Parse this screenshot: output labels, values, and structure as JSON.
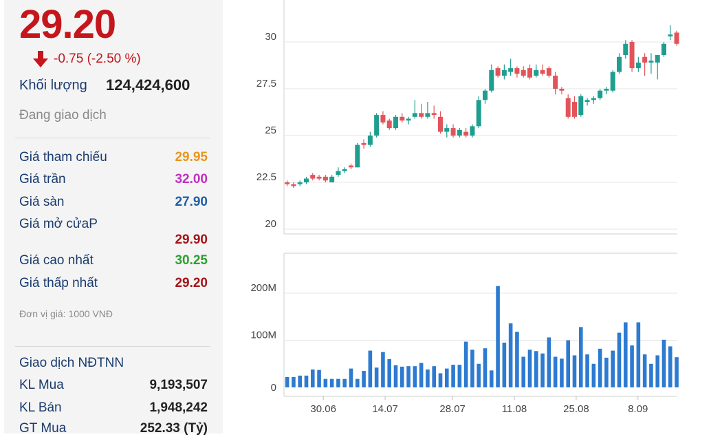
{
  "quote": {
    "price": "29.20",
    "change": "-0.75 (-2.50 %)",
    "volume_label": "Khối lượng",
    "volume_value": "124,424,600",
    "status": "Đang giao dịch"
  },
  "price_stats": [
    {
      "label": "Giá tham chiếu",
      "value": "29.95",
      "color": "#e8961b"
    },
    {
      "label": "Giá trần",
      "value": "32.00",
      "color": "#c12fc1"
    },
    {
      "label": "Giá sàn",
      "value": "27.90",
      "color": "#1f5fa5"
    },
    {
      "label": "Giá mở cửaP",
      "value": "29.90",
      "color": "#a31419"
    },
    {
      "label": "Giá cao nhất",
      "value": "30.25",
      "color": "#2e9e2e"
    },
    {
      "label": "Giá thấp nhất",
      "value": "29.20",
      "color": "#a31419"
    }
  ],
  "unit_note": "Đơn vị giá: 1000 VNĐ",
  "foreign": {
    "title": "Giao dịch NĐTNN",
    "rows": [
      {
        "label": "KL Mua",
        "value": "9,193,507"
      },
      {
        "label": "KL Bán",
        "value": "1,948,242"
      },
      {
        "label": "GT Mua",
        "value": "252.33 (Tỷ)"
      }
    ]
  },
  "colors": {
    "up": "#1f9e8f",
    "down": "#e2545a",
    "volume": "#2d7ad1",
    "price": "#c4161c"
  },
  "chart_data": [
    {
      "type": "candlestick",
      "y_ticks": [
        "30",
        "27.5",
        "25",
        "22.5",
        "20"
      ],
      "ylim": [
        20,
        31
      ],
      "x_ticks": [
        "30.06",
        "14.07",
        "28.07",
        "11.08",
        "25.08",
        "8.09"
      ],
      "candles": [
        {
          "o": 22.5,
          "h": 22.6,
          "l": 22.3,
          "c": 22.4
        },
        {
          "o": 22.4,
          "h": 22.5,
          "l": 22.2,
          "c": 22.3
        },
        {
          "o": 22.4,
          "h": 22.6,
          "l": 22.3,
          "c": 22.5
        },
        {
          "o": 22.5,
          "h": 22.8,
          "l": 22.4,
          "c": 22.7
        },
        {
          "o": 22.9,
          "h": 23.0,
          "l": 22.6,
          "c": 22.7
        },
        {
          "o": 22.8,
          "h": 22.9,
          "l": 22.6,
          "c": 22.7
        },
        {
          "o": 22.8,
          "h": 22.9,
          "l": 22.5,
          "c": 22.6
        },
        {
          "o": 22.5,
          "h": 22.9,
          "l": 22.5,
          "c": 22.8
        },
        {
          "o": 22.9,
          "h": 23.3,
          "l": 22.8,
          "c": 23.1
        },
        {
          "o": 23.1,
          "h": 23.3,
          "l": 23.0,
          "c": 23.2
        },
        {
          "o": 23.4,
          "h": 23.5,
          "l": 23.2,
          "c": 23.3
        },
        {
          "o": 23.3,
          "h": 24.6,
          "l": 23.3,
          "c": 24.5
        },
        {
          "o": 24.6,
          "h": 24.8,
          "l": 24.3,
          "c": 24.5
        },
        {
          "o": 24.5,
          "h": 25.2,
          "l": 24.4,
          "c": 25.0
        },
        {
          "o": 25.0,
          "h": 26.2,
          "l": 24.9,
          "c": 26.1
        },
        {
          "o": 26.1,
          "h": 26.3,
          "l": 25.6,
          "c": 25.7
        },
        {
          "o": 25.8,
          "h": 25.9,
          "l": 25.3,
          "c": 25.4
        },
        {
          "o": 25.4,
          "h": 26.1,
          "l": 25.3,
          "c": 26.0
        },
        {
          "o": 26.0,
          "h": 26.2,
          "l": 25.7,
          "c": 25.8
        },
        {
          "o": 25.8,
          "h": 26.0,
          "l": 25.6,
          "c": 25.9
        },
        {
          "o": 26.0,
          "h": 26.9,
          "l": 25.9,
          "c": 26.2
        },
        {
          "o": 26.2,
          "h": 26.7,
          "l": 25.9,
          "c": 26.0
        },
        {
          "o": 26.0,
          "h": 26.8,
          "l": 25.9,
          "c": 26.2
        },
        {
          "o": 26.2,
          "h": 26.6,
          "l": 25.9,
          "c": 26.1
        },
        {
          "o": 26.0,
          "h": 26.3,
          "l": 25.1,
          "c": 25.2
        },
        {
          "o": 25.2,
          "h": 25.6,
          "l": 24.9,
          "c": 25.4
        },
        {
          "o": 25.4,
          "h": 25.6,
          "l": 24.9,
          "c": 25.0
        },
        {
          "o": 25.0,
          "h": 25.4,
          "l": 24.9,
          "c": 25.3
        },
        {
          "o": 25.2,
          "h": 25.4,
          "l": 24.9,
          "c": 25.0
        },
        {
          "o": 25.0,
          "h": 25.6,
          "l": 24.9,
          "c": 25.5
        },
        {
          "o": 25.5,
          "h": 27.1,
          "l": 25.4,
          "c": 26.9
        },
        {
          "o": 26.9,
          "h": 27.5,
          "l": 26.7,
          "c": 27.4
        },
        {
          "o": 27.4,
          "h": 28.8,
          "l": 27.3,
          "c": 28.5
        },
        {
          "o": 28.6,
          "h": 28.7,
          "l": 28.1,
          "c": 28.2
        },
        {
          "o": 28.2,
          "h": 28.8,
          "l": 28.0,
          "c": 28.5
        },
        {
          "o": 28.4,
          "h": 29.1,
          "l": 28.2,
          "c": 28.6
        },
        {
          "o": 28.6,
          "h": 28.7,
          "l": 28.1,
          "c": 28.3
        },
        {
          "o": 28.5,
          "h": 28.7,
          "l": 28.1,
          "c": 28.2
        },
        {
          "o": 28.6,
          "h": 28.8,
          "l": 28.0,
          "c": 28.1
        },
        {
          "o": 28.2,
          "h": 28.8,
          "l": 28.1,
          "c": 28.5
        },
        {
          "o": 28.5,
          "h": 28.8,
          "l": 28.2,
          "c": 28.3
        },
        {
          "o": 28.6,
          "h": 28.7,
          "l": 28.1,
          "c": 28.2
        },
        {
          "o": 28.2,
          "h": 28.4,
          "l": 27.2,
          "c": 27.5
        },
        {
          "o": 27.5,
          "h": 27.6,
          "l": 27.2,
          "c": 27.4
        },
        {
          "o": 27.0,
          "h": 27.2,
          "l": 25.9,
          "c": 26.0
        },
        {
          "o": 26.8,
          "h": 27.1,
          "l": 25.9,
          "c": 26.0
        },
        {
          "o": 26.1,
          "h": 27.2,
          "l": 26.0,
          "c": 27.1
        },
        {
          "o": 26.8,
          "h": 27.0,
          "l": 26.6,
          "c": 26.9
        },
        {
          "o": 26.9,
          "h": 27.1,
          "l": 26.7,
          "c": 27.0
        },
        {
          "o": 27.0,
          "h": 27.5,
          "l": 26.9,
          "c": 27.4
        },
        {
          "o": 27.4,
          "h": 27.6,
          "l": 27.2,
          "c": 27.5
        },
        {
          "o": 27.4,
          "h": 28.5,
          "l": 27.3,
          "c": 28.4
        },
        {
          "o": 28.4,
          "h": 29.4,
          "l": 28.3,
          "c": 29.2
        },
        {
          "o": 29.3,
          "h": 30.1,
          "l": 29.1,
          "c": 29.9
        },
        {
          "o": 30.0,
          "h": 30.1,
          "l": 28.4,
          "c": 28.6
        },
        {
          "o": 28.6,
          "h": 29.2,
          "l": 28.4,
          "c": 28.9
        },
        {
          "o": 29.2,
          "h": 29.4,
          "l": 28.2,
          "c": 28.9
        },
        {
          "o": 28.9,
          "h": 29.4,
          "l": 28.3,
          "c": 29.0
        },
        {
          "o": 28.9,
          "h": 29.3,
          "l": 28.0,
          "c": 29.3
        },
        {
          "o": 29.3,
          "h": 30.0,
          "l": 29.2,
          "c": 29.9
        },
        {
          "o": 30.3,
          "h": 30.9,
          "l": 30.1,
          "c": 30.4
        },
        {
          "o": 30.5,
          "h": 30.6,
          "l": 29.8,
          "c": 29.9
        }
      ]
    },
    {
      "type": "bar",
      "y_ticks": [
        "200M",
        "100M",
        "0"
      ],
      "ylim": [
        0,
        250
      ],
      "values": [
        22,
        22,
        25,
        25,
        38,
        37,
        18,
        18,
        18,
        18,
        40,
        18,
        35,
        78,
        42,
        75,
        60,
        47,
        44,
        45,
        45,
        52,
        38,
        45,
        30,
        40,
        48,
        48,
        97,
        80,
        50,
        83,
        36,
        215,
        95,
        136,
        118,
        65,
        80,
        77,
        72,
        106,
        65,
        61,
        100,
        68,
        128,
        70,
        50,
        82,
        63,
        78,
        116,
        138,
        89,
        138,
        70,
        50,
        68,
        101,
        87,
        64
      ]
    }
  ]
}
